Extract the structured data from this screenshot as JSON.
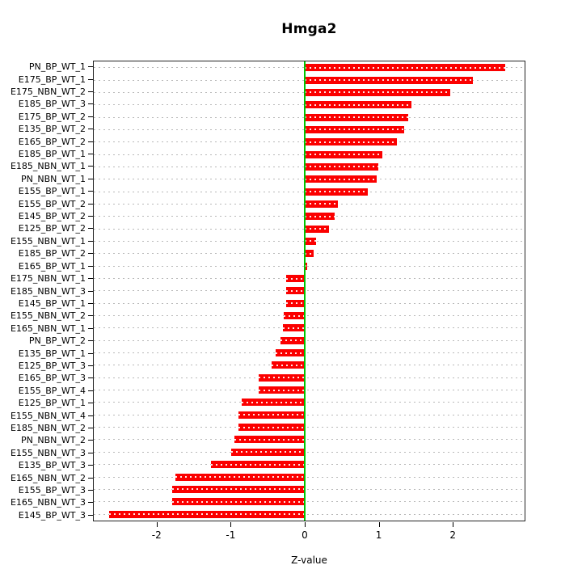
{
  "page": {
    "background": "#ffffff"
  },
  "chart_data": {
    "type": "bar",
    "orientation": "horizontal",
    "title": "Hmga2",
    "xlabel": "Z-value",
    "xlim": [
      -2.86,
      2.98
    ],
    "x_ticks": [
      "-2",
      "-1",
      "0",
      "1",
      "2"
    ],
    "x_tick_values": [
      -2,
      -1,
      0,
      1,
      2
    ],
    "grid": "dotted-horizontal-per-bar",
    "legend": "none",
    "bar_color": "#fb0000",
    "zero_line_color": "#00c400",
    "zero_line_x": 0,
    "categories": [
      "PN_BP_WT_1",
      "E175_BP_WT_1",
      "E175_NBN_WT_2",
      "E185_BP_WT_3",
      "E175_BP_WT_2",
      "E135_BP_WT_2",
      "E165_BP_WT_2",
      "E185_BP_WT_1",
      "E185_NBN_WT_1",
      "PN_NBN_WT_1",
      "E155_BP_WT_1",
      "E155_BP_WT_2",
      "E145_BP_WT_2",
      "E125_BP_WT_2",
      "E155_NBN_WT_1",
      "E185_BP_WT_2",
      "E165_BP_WT_1",
      "E175_NBN_WT_1",
      "E185_NBN_WT_3",
      "E145_BP_WT_1",
      "E155_NBN_WT_2",
      "E165_NBN_WT_1",
      "PN_BP_WT_2",
      "E135_BP_WT_1",
      "E125_BP_WT_3",
      "E165_BP_WT_3",
      "E155_BP_WT_4",
      "E125_BP_WT_1",
      "E155_NBN_WT_4",
      "E185_NBN_WT_2",
      "PN_NBN_WT_2",
      "E155_NBN_WT_3",
      "E135_BP_WT_3",
      "E165_NBN_WT_2",
      "E155_BP_WT_3",
      "E165_NBN_WT_3",
      "E145_BP_WT_3"
    ],
    "values": [
      2.72,
      2.28,
      1.97,
      1.45,
      1.4,
      1.35,
      1.25,
      1.05,
      1.0,
      0.98,
      0.85,
      0.45,
      0.4,
      0.33,
      0.15,
      0.12,
      0.03,
      -0.25,
      -0.25,
      -0.25,
      -0.28,
      -0.3,
      -0.33,
      -0.4,
      -0.45,
      -0.63,
      -0.63,
      -0.85,
      -0.9,
      -0.9,
      -0.95,
      -1.0,
      -1.27,
      -1.75,
      -1.8,
      -1.8,
      -2.65
    ]
  }
}
